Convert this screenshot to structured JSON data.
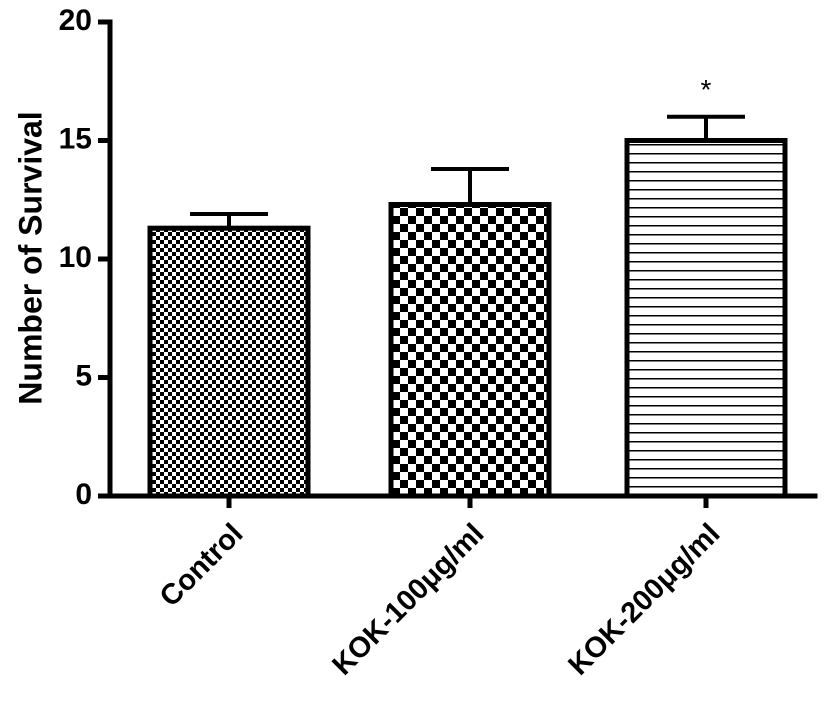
{
  "chart_data": {
    "type": "bar",
    "title": "",
    "xlabel": "",
    "ylabel": "Number of Survival",
    "ylim": [
      0,
      20
    ],
    "yticks": [
      0,
      5,
      10,
      15,
      20
    ],
    "categories": [
      "Control",
      "KOK-100μg/ml",
      "KOK-200μg/ml"
    ],
    "values": [
      11.3,
      12.3,
      15.0
    ],
    "errors": [
      0.6,
      1.5,
      1.0
    ],
    "annotations": [
      "",
      "",
      "*"
    ],
    "patterns": [
      "fine-checker",
      "coarse-checker",
      "horizontal-lines"
    ],
    "grid": false,
    "legend": "none"
  }
}
